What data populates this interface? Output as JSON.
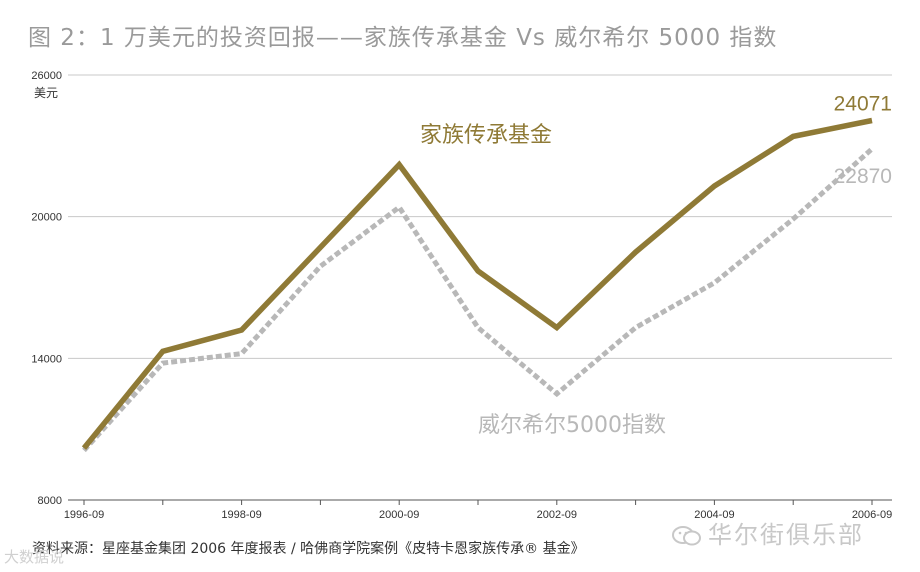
{
  "chart_data": {
    "type": "line",
    "title": "图 2：1 万美元的投资回报——家族传承基金 Vs 威尔希尔 5000 指数",
    "ylabel": "美元",
    "ylim": [
      8000,
      26000
    ],
    "yticks": [
      8000,
      14000,
      20000,
      26000
    ],
    "x": [
      1996.75,
      1997.75,
      1998.75,
      1999.75,
      2000.75,
      2001.75,
      2002.75,
      2003.75,
      2004.75,
      2005.75,
      2006.75
    ],
    "xtick_labels": [
      "1996-09",
      "1998-09",
      "2000-09",
      "2002-09",
      "2004-09",
      "2006-09"
    ],
    "series": [
      {
        "name": "家族传承基金",
        "color": "#8f7a36",
        "style": "solid",
        "values": [
          10200,
          14300,
          15200,
          18700,
          22200,
          17700,
          15300,
          18500,
          21300,
          23400,
          24071
        ],
        "end_label": "24071"
      },
      {
        "name": "威尔希尔5000指数",
        "color": "#b8b8b8",
        "style": "dotted",
        "values": [
          10100,
          13800,
          14200,
          17900,
          20400,
          15300,
          12500,
          15300,
          17200,
          19900,
          22870
        ],
        "end_label": "22870"
      }
    ]
  },
  "source": "资料来源：星座基金集团 2006 年度报表 / 哈佛商学院案例《皮特卡恩家族传承® 基金》",
  "watermark_right": "华尔街俱乐部",
  "watermark_left": "大数据说"
}
